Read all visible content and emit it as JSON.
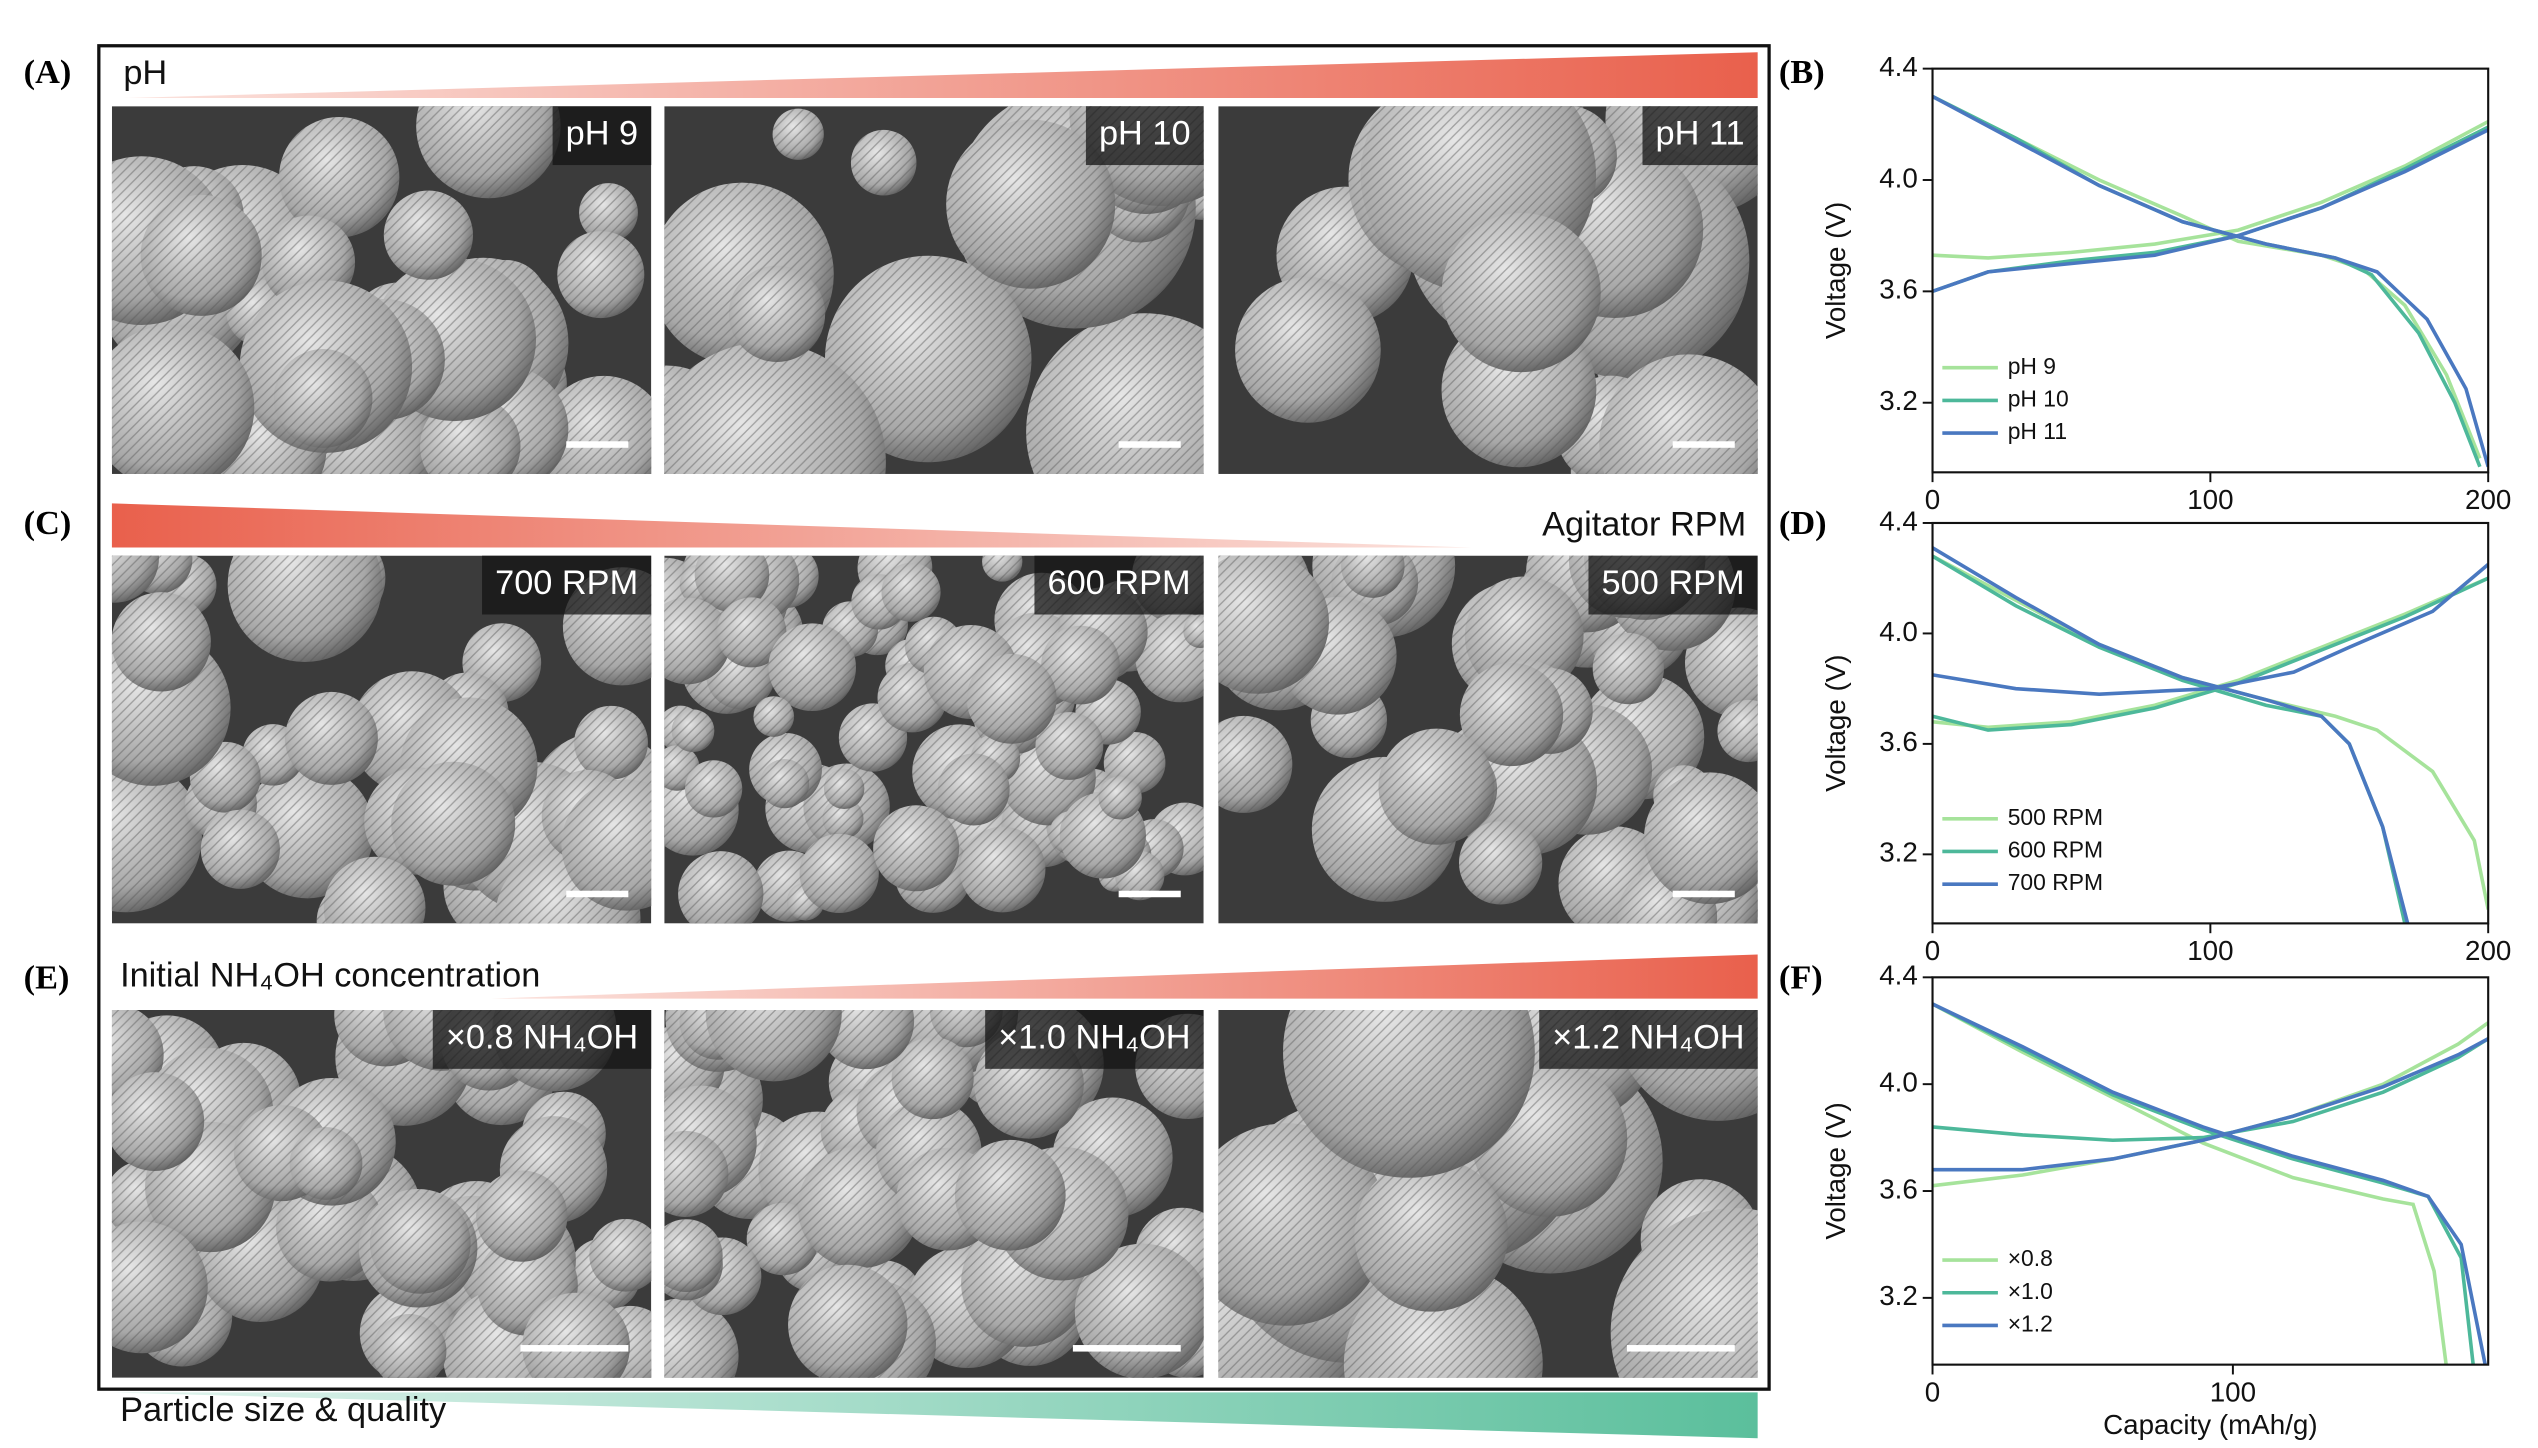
{
  "panel_labels": [
    "(A)",
    "(B)",
    "(C)",
    "(D)",
    "(E)",
    "(F)"
  ],
  "gradients": {
    "ph": "pH",
    "rpm": "Agitator RPM",
    "nh4oh": "Initial NH₄OH concentration",
    "quality": "Particle size & quality"
  },
  "images": [
    [
      "pH 9",
      "pH 10",
      "pH 11"
    ],
    [
      "700 RPM",
      "600 RPM",
      "500 RPM"
    ],
    [
      "×0.8 NH₄OH",
      "×1.0 NH₄OH",
      "×1.2 NH₄OH"
    ]
  ],
  "chart_data": [
    {
      "type": "line",
      "ylabel": "Voltage (V)",
      "xlim": [
        0,
        200
      ],
      "ylim": [
        2.95,
        4.4
      ],
      "xticks": [
        0,
        100,
        200
      ],
      "yticks": [
        4.4,
        {
          "value": 4,
          "label": "4.0"
        },
        3.6,
        3.2
      ],
      "legend": "lower left",
      "series": [
        {
          "name": "pH 9",
          "color": "#a6e39b",
          "x": [
            0,
            20,
            50,
            80,
            110,
            140,
            170,
            200,
            null,
            0,
            30,
            60,
            90,
            110,
            140,
            155,
            170,
            185,
            197
          ],
          "values": [
            3.73,
            3.72,
            3.74,
            3.77,
            3.82,
            3.92,
            4.05,
            4.21,
            null,
            4.3,
            4.15,
            4.0,
            3.87,
            3.78,
            3.73,
            3.68,
            3.55,
            3.3,
            3.0
          ]
        },
        {
          "name": "pH 10",
          "color": "#4db89a",
          "x": [
            0,
            20,
            50,
            80,
            110,
            140,
            170,
            200,
            null,
            0,
            30,
            60,
            90,
            120,
            145,
            158,
            175,
            188,
            197
          ],
          "values": [
            3.6,
            3.67,
            3.71,
            3.74,
            3.8,
            3.9,
            4.04,
            4.19,
            null,
            4.3,
            4.15,
            3.98,
            3.85,
            3.77,
            3.72,
            3.66,
            3.45,
            3.2,
            2.97
          ]
        },
        {
          "name": "pH 11",
          "color": "#4a78c0",
          "x": [
            0,
            20,
            50,
            80,
            110,
            140,
            170,
            200,
            null,
            0,
            30,
            60,
            90,
            120,
            145,
            160,
            178,
            192,
            200
          ],
          "values": [
            3.6,
            3.67,
            3.7,
            3.73,
            3.8,
            3.9,
            4.03,
            4.18,
            null,
            4.3,
            4.14,
            3.98,
            3.85,
            3.77,
            3.72,
            3.67,
            3.5,
            3.25,
            2.97
          ]
        }
      ]
    },
    {
      "type": "line",
      "ylabel": "Voltage (V)",
      "xlim": [
        0,
        200
      ],
      "ylim": [
        2.95,
        4.4
      ],
      "xticks": [
        0,
        100,
        200
      ],
      "yticks": [
        4.4,
        {
          "value": 4,
          "label": "4.0"
        },
        3.6,
        3.2
      ],
      "legend": "lower left",
      "series": [
        {
          "name": "500 RPM",
          "color": "#a6e39b",
          "x": [
            0,
            20,
            50,
            80,
            110,
            140,
            170,
            200,
            null,
            0,
            30,
            60,
            90,
            120,
            145,
            160,
            180,
            195,
            200
          ],
          "values": [
            3.68,
            3.66,
            3.68,
            3.74,
            3.83,
            3.95,
            4.07,
            4.2,
            null,
            4.28,
            4.12,
            3.96,
            3.84,
            3.76,
            3.7,
            3.65,
            3.5,
            3.25,
            3.0
          ]
        },
        {
          "name": "600 RPM",
          "color": "#4db89a",
          "x": [
            0,
            20,
            50,
            80,
            110,
            140,
            170,
            200,
            null,
            0,
            30,
            60,
            90,
            120,
            140,
            150,
            162,
            170
          ],
          "values": [
            3.7,
            3.65,
            3.67,
            3.73,
            3.82,
            3.94,
            4.06,
            4.2,
            null,
            4.28,
            4.1,
            3.95,
            3.83,
            3.74,
            3.7,
            3.6,
            3.3,
            2.95
          ]
        },
        {
          "name": "700 RPM",
          "color": "#4a78c0",
          "x": [
            0,
            30,
            60,
            100,
            130,
            150,
            180,
            200,
            null,
            0,
            30,
            60,
            90,
            120,
            140,
            150,
            162,
            171
          ],
          "values": [
            3.85,
            3.8,
            3.78,
            3.8,
            3.86,
            3.95,
            4.08,
            4.25,
            null,
            4.31,
            4.13,
            3.96,
            3.84,
            3.76,
            3.7,
            3.6,
            3.3,
            2.95
          ]
        }
      ]
    },
    {
      "type": "line",
      "ylabel": "Voltage (V)",
      "xlabel": "Capacity (mAh/g)",
      "xlim": [
        0,
        185
      ],
      "ylim": [
        2.95,
        4.4
      ],
      "xticks": [
        0,
        100
      ],
      "yticks": [
        4.4,
        {
          "value": 4,
          "label": "4.0"
        },
        3.6,
        3.2
      ],
      "legend": "lower left",
      "series": [
        {
          "name": "×0.8",
          "color": "#a6e39b",
          "x": [
            0,
            30,
            60,
            90,
            120,
            150,
            175,
            185,
            null,
            0,
            30,
            60,
            90,
            120,
            150,
            160,
            167,
            171
          ],
          "values": [
            3.62,
            3.66,
            3.72,
            3.79,
            3.88,
            4.0,
            4.15,
            4.23,
            null,
            4.3,
            4.12,
            3.95,
            3.78,
            3.65,
            3.57,
            3.55,
            3.3,
            2.95
          ]
        },
        {
          "name": "×1.0",
          "color": "#4db89a",
          "x": [
            0,
            30,
            60,
            90,
            120,
            150,
            175,
            185,
            null,
            0,
            30,
            60,
            90,
            120,
            150,
            165,
            176,
            180
          ],
          "values": [
            3.84,
            3.81,
            3.79,
            3.8,
            3.86,
            3.97,
            4.1,
            4.17,
            null,
            4.3,
            4.13,
            3.96,
            3.83,
            3.72,
            3.63,
            3.58,
            3.35,
            2.95
          ]
        },
        {
          "name": "×1.2",
          "color": "#4a78c0",
          "x": [
            0,
            30,
            60,
            90,
            120,
            150,
            175,
            185,
            null,
            0,
            30,
            60,
            90,
            120,
            150,
            165,
            176,
            184
          ],
          "values": [
            3.68,
            3.68,
            3.72,
            3.79,
            3.88,
            3.99,
            4.11,
            4.17,
            null,
            4.3,
            4.14,
            3.97,
            3.84,
            3.73,
            3.64,
            3.58,
            3.4,
            2.95
          ]
        }
      ]
    }
  ]
}
